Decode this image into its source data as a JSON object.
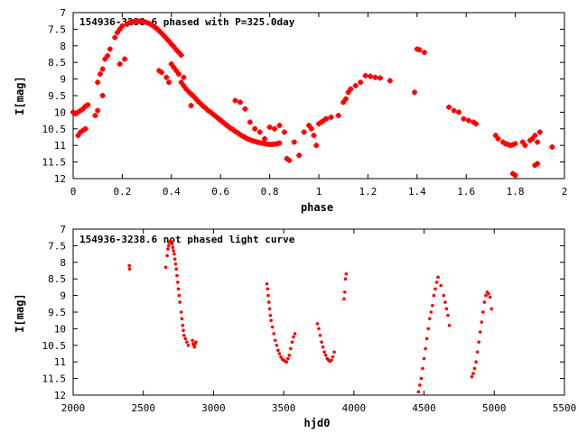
{
  "chart_data": [
    {
      "type": "scatter",
      "title": "154936-3238.6 phased with P=325.0day",
      "xlabel": "phase",
      "ylabel": "I[mag]",
      "xlim": [
        0,
        2
      ],
      "ylim": [
        7,
        12
      ],
      "y_inverted": true,
      "grid": false,
      "marker_color": "#ff0000",
      "marker": "plus-bold",
      "xticks": [
        "0",
        "0.2",
        "0.4",
        "0.6",
        "0.8",
        "1",
        "1.2",
        "1.4",
        "1.6",
        "1.8",
        "2"
      ],
      "yticks": [
        "7",
        "7.5",
        "8",
        "8.5",
        "9",
        "9.5",
        "10",
        "10.5",
        "11",
        "11.5",
        "12"
      ],
      "points": [
        [
          0.0,
          10.0
        ],
        [
          0.01,
          10.05
        ],
        [
          0.02,
          10.0
        ],
        [
          0.03,
          9.95
        ],
        [
          0.04,
          9.9
        ],
        [
          0.05,
          9.82
        ],
        [
          0.06,
          9.78
        ],
        [
          0.02,
          10.7
        ],
        [
          0.03,
          10.6
        ],
        [
          0.04,
          10.55
        ],
        [
          0.05,
          10.5
        ],
        [
          0.09,
          10.1
        ],
        [
          0.1,
          9.95
        ],
        [
          0.1,
          9.1
        ],
        [
          0.11,
          8.85
        ],
        [
          0.12,
          8.7
        ],
        [
          0.13,
          8.4
        ],
        [
          0.14,
          8.3
        ],
        [
          0.12,
          9.5
        ],
        [
          0.15,
          8.1
        ],
        [
          0.17,
          7.75
        ],
        [
          0.18,
          7.6
        ],
        [
          0.19,
          7.5
        ],
        [
          0.2,
          7.4
        ],
        [
          0.19,
          8.55
        ],
        [
          0.21,
          8.4
        ],
        [
          0.22,
          7.35
        ],
        [
          0.23,
          7.3
        ],
        [
          0.24,
          7.28
        ],
        [
          0.25,
          7.27
        ],
        [
          0.26,
          7.26
        ],
        [
          0.27,
          7.26
        ],
        [
          0.28,
          7.27
        ],
        [
          0.29,
          7.28
        ],
        [
          0.3,
          7.3
        ],
        [
          0.31,
          7.33
        ],
        [
          0.32,
          7.37
        ],
        [
          0.33,
          7.42
        ],
        [
          0.34,
          7.48
        ],
        [
          0.35,
          7.55
        ],
        [
          0.36,
          7.62
        ],
        [
          0.37,
          7.7
        ],
        [
          0.38,
          7.78
        ],
        [
          0.39,
          7.86
        ],
        [
          0.4,
          7.95
        ],
        [
          0.41,
          8.03
        ],
        [
          0.42,
          8.12
        ],
        [
          0.43,
          8.2
        ],
        [
          0.44,
          8.28
        ],
        [
          0.35,
          8.75
        ],
        [
          0.36,
          8.8
        ],
        [
          0.38,
          8.95
        ],
        [
          0.39,
          9.1
        ],
        [
          0.4,
          8.55
        ],
        [
          0.41,
          8.65
        ],
        [
          0.42,
          8.75
        ],
        [
          0.43,
          8.85
        ],
        [
          0.44,
          9.1
        ],
        [
          0.45,
          9.2
        ],
        [
          0.46,
          9.3
        ],
        [
          0.47,
          9.38
        ],
        [
          0.48,
          9.45
        ],
        [
          0.49,
          9.52
        ],
        [
          0.5,
          9.6
        ],
        [
          0.51,
          9.68
        ],
        [
          0.52,
          9.75
        ],
        [
          0.53,
          9.82
        ],
        [
          0.54,
          9.88
        ],
        [
          0.55,
          9.95
        ],
        [
          0.56,
          10.0
        ],
        [
          0.57,
          10.06
        ],
        [
          0.58,
          10.12
        ],
        [
          0.59,
          10.18
        ],
        [
          0.6,
          10.24
        ],
        [
          0.61,
          10.3
        ],
        [
          0.62,
          10.36
        ],
        [
          0.63,
          10.42
        ],
        [
          0.64,
          10.48
        ],
        [
          0.65,
          10.52
        ],
        [
          0.66,
          10.58
        ],
        [
          0.67,
          10.62
        ],
        [
          0.68,
          10.68
        ],
        [
          0.69,
          10.72
        ],
        [
          0.7,
          10.76
        ],
        [
          0.71,
          10.8
        ],
        [
          0.72,
          10.83
        ],
        [
          0.73,
          10.86
        ],
        [
          0.74,
          10.88
        ],
        [
          0.75,
          10.9
        ],
        [
          0.76,
          10.92
        ],
        [
          0.77,
          10.93
        ],
        [
          0.78,
          10.95
        ],
        [
          0.79,
          10.96
        ],
        [
          0.8,
          10.97
        ],
        [
          0.81,
          10.97
        ],
        [
          0.82,
          10.96
        ],
        [
          0.83,
          10.95
        ],
        [
          0.84,
          10.93
        ],
        [
          0.45,
          8.95
        ],
        [
          0.48,
          9.8
        ],
        [
          0.66,
          9.65
        ],
        [
          0.68,
          9.7
        ],
        [
          0.7,
          9.9
        ],
        [
          0.72,
          10.3
        ],
        [
          0.74,
          10.5
        ],
        [
          0.76,
          10.6
        ],
        [
          0.78,
          10.8
        ],
        [
          0.8,
          10.45
        ],
        [
          0.82,
          10.5
        ],
        [
          0.84,
          10.4
        ],
        [
          0.86,
          10.6
        ],
        [
          0.87,
          11.4
        ],
        [
          0.88,
          11.45
        ],
        [
          0.9,
          10.9
        ],
        [
          0.92,
          11.3
        ],
        [
          0.94,
          10.6
        ],
        [
          0.96,
          10.4
        ],
        [
          0.97,
          10.5
        ],
        [
          0.98,
          10.7
        ],
        [
          0.99,
          11.0
        ],
        [
          1.0,
          10.35
        ],
        [
          1.01,
          10.3
        ],
        [
          1.02,
          10.25
        ],
        [
          1.03,
          10.2
        ],
        [
          1.05,
          10.15
        ],
        [
          1.08,
          10.1
        ],
        [
          1.1,
          9.7
        ],
        [
          1.11,
          9.6
        ],
        [
          1.12,
          9.4
        ],
        [
          1.13,
          9.3
        ],
        [
          1.15,
          9.2
        ],
        [
          1.17,
          9.1
        ],
        [
          1.19,
          8.9
        ],
        [
          1.21,
          8.92
        ],
        [
          1.23,
          8.95
        ],
        [
          1.25,
          8.97
        ],
        [
          1.29,
          9.05
        ],
        [
          1.39,
          9.4
        ],
        [
          1.4,
          8.1
        ],
        [
          1.41,
          8.12
        ],
        [
          1.43,
          8.2
        ],
        [
          1.53,
          9.85
        ],
        [
          1.55,
          9.95
        ],
        [
          1.57,
          10.0
        ],
        [
          1.59,
          10.2
        ],
        [
          1.61,
          10.25
        ],
        [
          1.63,
          10.3
        ],
        [
          1.64,
          10.35
        ],
        [
          1.72,
          10.7
        ],
        [
          1.73,
          10.8
        ],
        [
          1.75,
          10.9
        ],
        [
          1.76,
          10.95
        ],
        [
          1.77,
          10.97
        ],
        [
          1.78,
          11.0
        ],
        [
          1.79,
          10.98
        ],
        [
          1.8,
          10.95
        ],
        [
          1.83,
          10.9
        ],
        [
          1.84,
          11.0
        ],
        [
          1.86,
          10.85
        ],
        [
          1.87,
          10.8
        ],
        [
          1.88,
          10.7
        ],
        [
          1.89,
          10.9
        ],
        [
          1.9,
          10.6
        ],
        [
          1.79,
          11.85
        ],
        [
          1.8,
          11.9
        ],
        [
          1.88,
          11.6
        ],
        [
          1.89,
          11.55
        ],
        [
          1.95,
          11.05
        ]
      ]
    },
    {
      "type": "scatter",
      "title": "154936-3238.6 not phased light curve",
      "xlabel": "hjd0",
      "ylabel": "I[mag]",
      "xlim": [
        2000,
        5500
      ],
      "ylim": [
        7,
        12
      ],
      "y_inverted": true,
      "grid": false,
      "marker_color": "#ff0000",
      "marker": "dot",
      "xticks": [
        "2000",
        "2500",
        "3000",
        "3500",
        "4000",
        "4500",
        "5000",
        "5500"
      ],
      "yticks": [
        "7",
        "7.5",
        "8",
        "8.5",
        "9",
        "9.5",
        "10",
        "10.5",
        "11",
        "11.5",
        "12"
      ],
      "points": [
        [
          2400,
          8.1
        ],
        [
          2402,
          8.2
        ],
        [
          2660,
          8.15
        ],
        [
          2670,
          7.8
        ],
        [
          2675,
          7.6
        ],
        [
          2680,
          7.5
        ],
        [
          2685,
          7.4
        ],
        [
          2690,
          7.38
        ],
        [
          2695,
          7.35
        ],
        [
          2700,
          7.4
        ],
        [
          2705,
          7.45
        ],
        [
          2710,
          7.55
        ],
        [
          2715,
          7.65
        ],
        [
          2720,
          7.75
        ],
        [
          2725,
          7.9
        ],
        [
          2730,
          8.05
        ],
        [
          2735,
          8.2
        ],
        [
          2740,
          8.4
        ],
        [
          2745,
          8.6
        ],
        [
          2750,
          8.8
        ],
        [
          2755,
          9.0
        ],
        [
          2760,
          9.2
        ],
        [
          2770,
          9.5
        ],
        [
          2775,
          9.7
        ],
        [
          2780,
          9.9
        ],
        [
          2785,
          10.05
        ],
        [
          2790,
          10.2
        ],
        [
          2800,
          10.3
        ],
        [
          2810,
          10.4
        ],
        [
          2820,
          10.5
        ],
        [
          2850,
          10.35
        ],
        [
          2855,
          10.45
        ],
        [
          2860,
          10.5
        ],
        [
          2865,
          10.55
        ],
        [
          2870,
          10.45
        ],
        [
          2875,
          10.4
        ],
        [
          3380,
          8.65
        ],
        [
          3385,
          8.8
        ],
        [
          3390,
          9.0
        ],
        [
          3395,
          9.2
        ],
        [
          3400,
          9.4
        ],
        [
          3405,
          9.6
        ],
        [
          3410,
          9.75
        ],
        [
          3420,
          9.95
        ],
        [
          3430,
          10.15
        ],
        [
          3440,
          10.35
        ],
        [
          3450,
          10.5
        ],
        [
          3460,
          10.65
        ],
        [
          3470,
          10.75
        ],
        [
          3480,
          10.85
        ],
        [
          3490,
          10.92
        ],
        [
          3500,
          10.95
        ],
        [
          3510,
          10.98
        ],
        [
          3520,
          11.0
        ],
        [
          3530,
          10.9
        ],
        [
          3540,
          10.8
        ],
        [
          3550,
          10.6
        ],
        [
          3560,
          10.4
        ],
        [
          3570,
          10.25
        ],
        [
          3580,
          10.15
        ],
        [
          3740,
          9.85
        ],
        [
          3750,
          10.0
        ],
        [
          3760,
          10.2
        ],
        [
          3770,
          10.4
        ],
        [
          3780,
          10.55
        ],
        [
          3790,
          10.7
        ],
        [
          3800,
          10.8
        ],
        [
          3810,
          10.9
        ],
        [
          3820,
          10.95
        ],
        [
          3830,
          10.98
        ],
        [
          3840,
          10.95
        ],
        [
          3850,
          10.85
        ],
        [
          3860,
          10.7
        ],
        [
          3930,
          9.1
        ],
        [
          3935,
          8.9
        ],
        [
          3940,
          8.5
        ],
        [
          3945,
          8.35
        ],
        [
          4460,
          11.9
        ],
        [
          4470,
          11.7
        ],
        [
          4480,
          11.5
        ],
        [
          4490,
          11.2
        ],
        [
          4500,
          10.9
        ],
        [
          4510,
          10.6
        ],
        [
          4520,
          10.3
        ],
        [
          4530,
          10.0
        ],
        [
          4540,
          9.7
        ],
        [
          4550,
          9.5
        ],
        [
          4560,
          9.3
        ],
        [
          4570,
          9.0
        ],
        [
          4580,
          8.8
        ],
        [
          4590,
          8.6
        ],
        [
          4600,
          8.45
        ],
        [
          4620,
          8.7
        ],
        [
          4640,
          9.0
        ],
        [
          4650,
          9.2
        ],
        [
          4660,
          9.4
        ],
        [
          4670,
          9.6
        ],
        [
          4680,
          9.9
        ],
        [
          4840,
          11.45
        ],
        [
          4850,
          11.35
        ],
        [
          4860,
          11.2
        ],
        [
          4870,
          11.0
        ],
        [
          4880,
          10.7
        ],
        [
          4890,
          10.4
        ],
        [
          4900,
          10.1
        ],
        [
          4910,
          9.8
        ],
        [
          4920,
          9.5
        ],
        [
          4930,
          9.2
        ],
        [
          4940,
          9.0
        ],
        [
          4950,
          8.9
        ],
        [
          4960,
          8.95
        ],
        [
          4970,
          9.05
        ],
        [
          4980,
          9.4
        ]
      ]
    }
  ]
}
